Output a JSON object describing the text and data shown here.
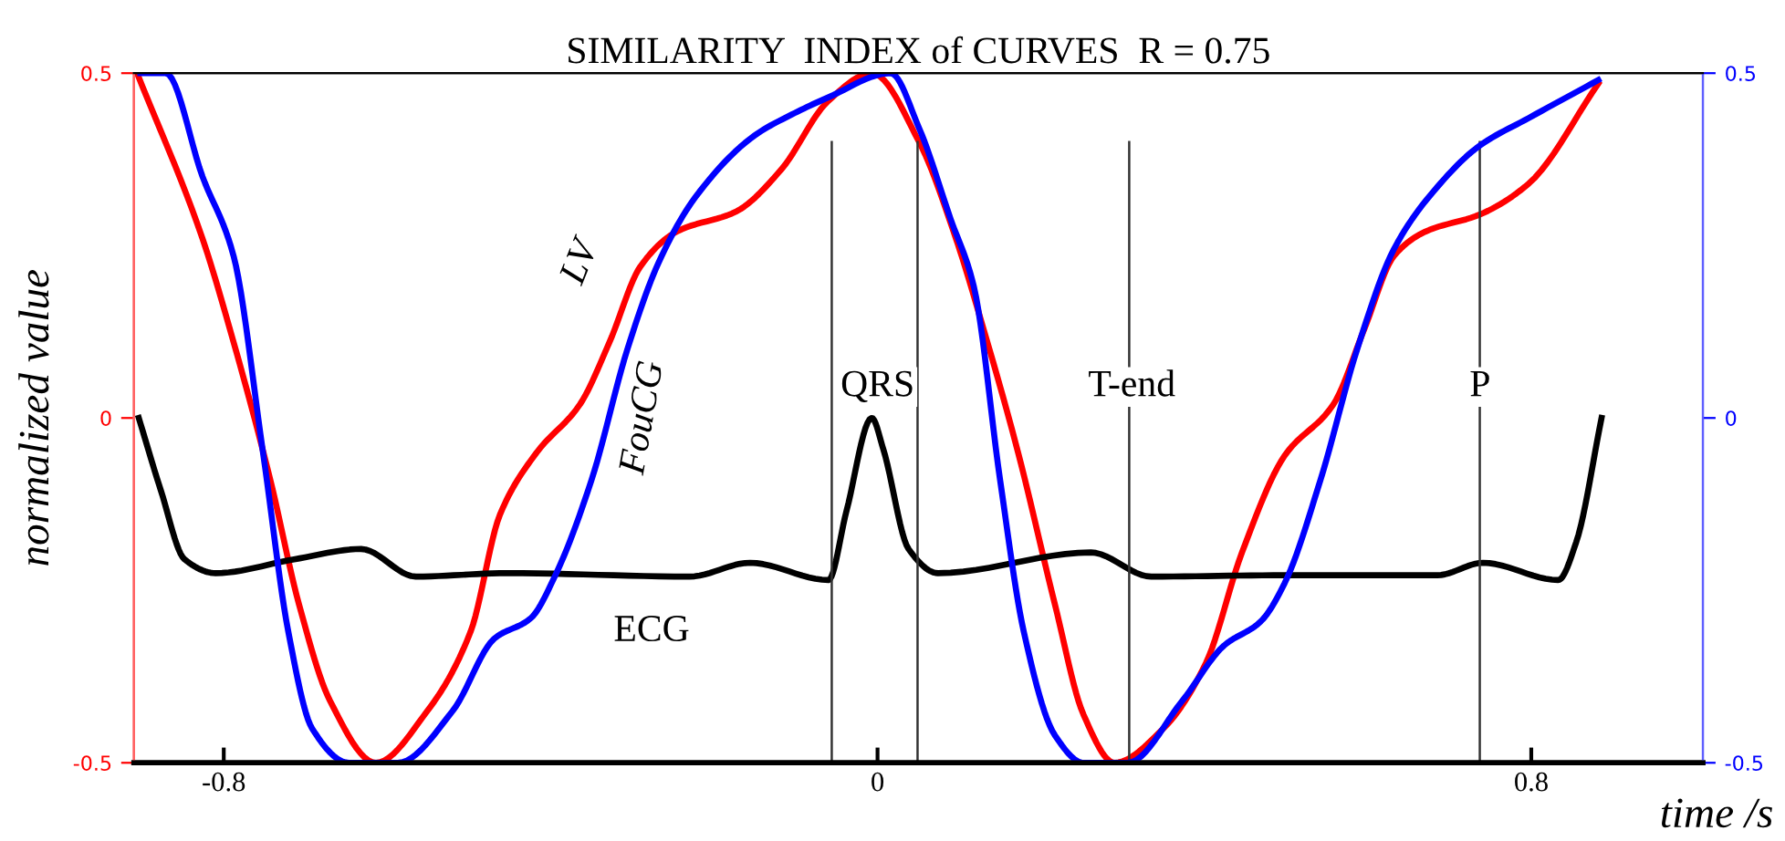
{
  "chart_data": {
    "type": "line",
    "title": "SIMILARITY  INDEX of CURVES  R = 0.75",
    "xlabel": "time /s",
    "ylabel": "normalized value",
    "xlim": [
      -0.91,
      1.01
    ],
    "xticks": [
      -0.8,
      0,
      0.8
    ],
    "ylim": [
      -0.5,
      0.5
    ],
    "yticks": [
      -0.5,
      0,
      0.5
    ],
    "y2lim": [
      -0.5,
      0.5
    ],
    "y2ticks": [
      -0.5,
      0,
      0.5
    ],
    "grid": false,
    "series": [
      {
        "color": "#ff0000",
        "x": [
          -0.906,
          -0.826,
          -0.788,
          -0.743,
          -0.708,
          -0.67,
          -0.614,
          -0.551,
          -0.498,
          -0.462,
          -0.417,
          -0.364,
          -0.328,
          -0.29,
          -0.246,
          -0.172,
          -0.118,
          -0.06,
          -0.007,
          0.051,
          0.096,
          0.127,
          0.172,
          0.217,
          0.252,
          0.29,
          0.35,
          0.402,
          0.446,
          0.498,
          0.558,
          0.596,
          0.632,
          0.67,
          0.737,
          0.797,
          0.882
        ],
        "values": [
          0.5,
          0.26,
          0.11,
          -0.09,
          -0.27,
          -0.41,
          -0.5,
          -0.425,
          -0.31,
          -0.14,
          -0.05,
          0.02,
          0.11,
          0.22,
          0.27,
          0.3,
          0.36,
          0.46,
          0.5,
          0.4,
          0.26,
          0.14,
          -0.05,
          -0.27,
          -0.43,
          -0.5,
          -0.45,
          -0.355,
          -0.195,
          -0.055,
          0.02,
          0.13,
          0.235,
          0.27,
          0.295,
          0.34,
          0.485
        ]
      },
      {
        "color": "#0000ff",
        "axis": "y2",
        "x": [
          -0.902,
          -0.871,
          -0.826,
          -0.788,
          -0.752,
          -0.721,
          -0.692,
          -0.647,
          -0.587,
          -0.52,
          -0.469,
          -0.424,
          -0.395,
          -0.35,
          -0.306,
          -0.268,
          -0.223,
          -0.15,
          -0.105,
          -0.06,
          0.016,
          0.051,
          0.089,
          0.118,
          0.15,
          0.179,
          0.217,
          0.252,
          0.306,
          0.373,
          0.424,
          0.469,
          0.498,
          0.542,
          0.587,
          0.632,
          0.685,
          0.737,
          0.797,
          0.882
        ],
        "values": [
          0.5,
          0.5,
          0.35,
          0.235,
          -0.05,
          -0.31,
          -0.45,
          -0.5,
          -0.5,
          -0.425,
          -0.32,
          -0.29,
          -0.23,
          -0.09,
          0.1,
          0.225,
          0.32,
          0.41,
          0.44,
          0.465,
          0.5,
          0.42,
          0.29,
          0.19,
          -0.09,
          -0.31,
          -0.46,
          -0.5,
          -0.5,
          -0.41,
          -0.33,
          -0.295,
          -0.24,
          -0.09,
          0.1,
          0.245,
          0.335,
          0.395,
          0.435,
          0.49
        ]
      },
      {
        "color": "#000000",
        "x": [
          -0.904,
          -0.877,
          -0.848,
          -0.81,
          -0.714,
          -0.632,
          -0.565,
          -0.453,
          -0.23,
          -0.156,
          -0.06,
          -0.038,
          -0.007,
          0.007,
          0.038,
          0.074,
          0.261,
          0.335,
          0.498,
          0.685,
          0.741,
          0.833,
          0.855,
          0.886
        ],
        "values": [
          0.0,
          -0.105,
          -0.205,
          -0.225,
          -0.205,
          -0.19,
          -0.23,
          -0.225,
          -0.23,
          -0.21,
          -0.235,
          -0.135,
          0.0,
          -0.045,
          -0.19,
          -0.225,
          -0.195,
          -0.23,
          -0.228,
          -0.228,
          -0.21,
          -0.235,
          -0.18,
          0.0
        ]
      }
    ],
    "ref_lines": [
      {
        "axis": "x",
        "value": -0.056,
        "color": "#333333"
      },
      {
        "axis": "x",
        "value": 0.049,
        "color": "#333333"
      },
      {
        "axis": "x",
        "value": 0.308,
        "color": "#333333"
      },
      {
        "axis": "x",
        "value": 0.737,
        "color": "#333333"
      }
    ],
    "annotations": [
      "LV",
      "FouCG",
      "ECG",
      "QRS",
      "T-end",
      "P"
    ]
  }
}
